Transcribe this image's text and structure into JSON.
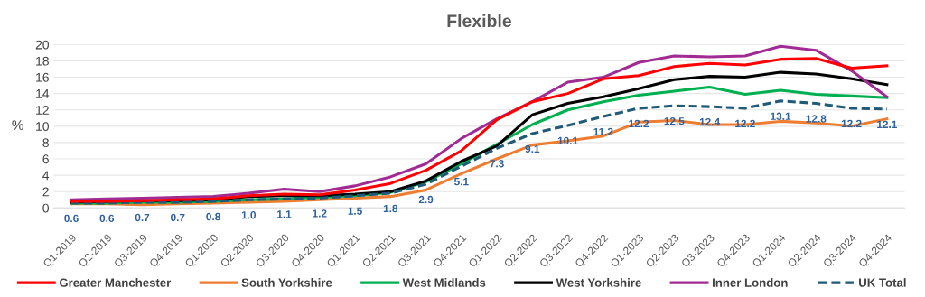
{
  "chart_data": {
    "type": "line",
    "title": "Flexible",
    "ylabel": "%",
    "categories": [
      "Q1-2019",
      "Q2-2019",
      "Q3-2019",
      "Q4-2019",
      "Q1-2020",
      "Q2-2020",
      "Q3-2020",
      "Q4-2020",
      "Q1-2021",
      "Q2-2021",
      "Q3-2021",
      "Q4-2021",
      "Q1-2022",
      "Q2-2022",
      "Q3-2022",
      "Q4-2022",
      "Q1-2023",
      "Q2-2023",
      "Q3-2023",
      "Q4-2023",
      "Q1-2024",
      "Q2-2024",
      "Q3-2024",
      "Q4-2024"
    ],
    "series": [
      {
        "name": "Greater Manchester",
        "color": "#ff0000",
        "values": [
          0.8,
          0.8,
          0.9,
          1.0,
          1.1,
          1.5,
          1.7,
          1.6,
          2.2,
          3.0,
          4.6,
          7.0,
          10.8,
          13.0,
          14.0,
          15.8,
          16.2,
          17.3,
          17.7,
          17.5,
          18.2,
          18.3,
          17.1,
          17.4
        ]
      },
      {
        "name": "South Yorkshire",
        "color": "#ed7d31",
        "values": [
          0.5,
          0.5,
          0.4,
          0.5,
          0.6,
          0.7,
          0.8,
          1.0,
          1.2,
          1.4,
          2.2,
          4.2,
          6.0,
          7.7,
          8.2,
          8.8,
          10.5,
          10.7,
          10.2,
          10.2,
          10.6,
          10.4,
          10.0,
          10.9
        ]
      },
      {
        "name": "West Midlands",
        "color": "#00b050",
        "values": [
          0.6,
          0.6,
          0.7,
          0.7,
          0.8,
          1.0,
          1.1,
          1.3,
          1.5,
          1.9,
          3.2,
          5.4,
          7.8,
          10.2,
          12.0,
          13.0,
          13.8,
          14.3,
          14.8,
          13.9,
          14.4,
          13.9,
          13.7,
          13.5
        ]
      },
      {
        "name": "West Yorkshire",
        "color": "#000000",
        "values": [
          0.7,
          0.8,
          0.9,
          0.9,
          1.0,
          1.4,
          1.5,
          1.5,
          1.7,
          2.0,
          3.3,
          5.7,
          7.6,
          11.4,
          12.8,
          13.6,
          14.6,
          15.7,
          16.1,
          16.0,
          16.6,
          16.4,
          15.8,
          15.1
        ]
      },
      {
        "name": "Inner London",
        "color": "#a02b93",
        "values": [
          1.0,
          1.1,
          1.2,
          1.3,
          1.4,
          1.8,
          2.3,
          2.0,
          2.7,
          3.8,
          5.4,
          8.5,
          10.9,
          13.0,
          15.4,
          16.0,
          17.8,
          18.6,
          18.5,
          18.6,
          19.8,
          19.3,
          16.8,
          13.6
        ]
      },
      {
        "name": "UK Total",
        "color": "#1f5a78",
        "line_style": "dashed",
        "values": [
          0.6,
          0.6,
          0.7,
          0.7,
          0.8,
          1.0,
          1.1,
          1.2,
          1.5,
          1.8,
          2.9,
          5.1,
          7.3,
          9.1,
          10.1,
          11.2,
          12.2,
          12.5,
          12.4,
          12.2,
          13.1,
          12.8,
          12.2,
          12.1
        ],
        "value_labels": [
          "0.6",
          "0.6",
          "0.7",
          "0.7",
          "0.8",
          "1.0",
          "1.1",
          "1.2",
          "1.5",
          "1.8",
          "2.9",
          "5.1",
          "7.3",
          "9.1",
          "10.1",
          "11.2",
          "12.2",
          "12.5",
          "12.4",
          "12.2",
          "13.1",
          "12.8",
          "12.2",
          "12.1"
        ]
      }
    ],
    "ylim": [
      0,
      20
    ],
    "yticks": [
      0,
      2,
      4,
      6,
      8,
      10,
      12,
      14,
      16,
      18,
      20
    ],
    "grid": "y",
    "legend": "bottom",
    "line_style": "solid",
    "marker": "none"
  }
}
